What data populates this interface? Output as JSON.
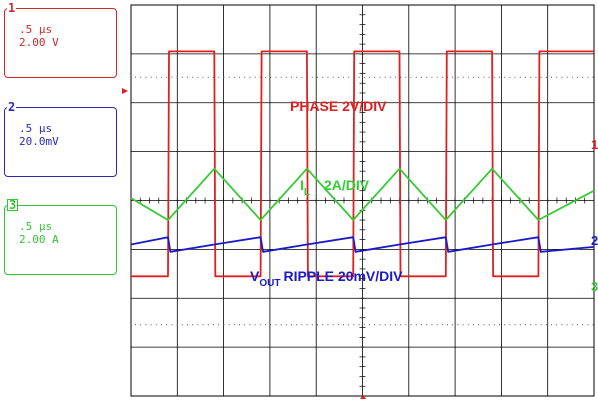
{
  "channels": [
    {
      "number": "1",
      "timebase": ".5 µs",
      "scale": "2.00 V",
      "color": "#e02020"
    },
    {
      "number": "2",
      "timebase": ".5 µs",
      "scale": "20.0mV",
      "color": "#1a1ac8"
    },
    {
      "number": "3",
      "timebase": ".5 µs",
      "scale": "2.00 A",
      "color": "#33cc33"
    }
  ],
  "annotations": {
    "phase": "PHASE 2V/DIV",
    "il_main": "I",
    "il_sub": "L",
    "il_scale": "2A/DIV",
    "vout_main": "V",
    "vout_sub": "OUT",
    "vout_rest": "RIPPLE  20mV/DIV"
  },
  "chart_data": {
    "type": "line",
    "title": "",
    "xlabel": "",
    "ylabel": "",
    "grid": true,
    "divisions": {
      "x": 10,
      "y": 8
    },
    "timebase_per_div": ".5 µs",
    "series": [
      {
        "name": "PHASE 2V/DIV",
        "x": [
          0.0,
          0.8,
          0.82,
          1.8,
          1.82,
          2.8,
          2.82,
          3.8,
          3.82,
          4.8,
          4.82,
          5.8,
          5.82,
          6.8,
          6.82,
          7.8,
          7.82,
          8.8,
          8.82,
          10.0
        ],
        "values": [
          2.45,
          2.45,
          7.05,
          7.05,
          2.45,
          2.45,
          7.05,
          7.05,
          2.45,
          2.45,
          7.05,
          7.05,
          2.45,
          2.45,
          7.05,
          7.05,
          2.45,
          2.45,
          7.05,
          7.05
        ]
      },
      {
        "name": "IL 2A/DIV",
        "x": [
          0.0,
          0.8,
          1.8,
          2.8,
          3.8,
          4.8,
          5.8,
          6.8,
          7.8,
          8.8,
          10.0
        ],
        "values": [
          4.05,
          3.6,
          4.65,
          3.6,
          4.65,
          3.6,
          4.65,
          3.6,
          4.65,
          3.6,
          4.2
        ]
      },
      {
        "name": "VOUT RIPPLE 20mV/DIV",
        "x": [
          0.0,
          0.8,
          0.85,
          1.8,
          2.8,
          2.85,
          3.8,
          4.8,
          4.85,
          5.8,
          6.8,
          6.85,
          7.8,
          8.8,
          8.85,
          10.0
        ],
        "values": [
          3.1,
          3.25,
          2.95,
          3.1,
          3.25,
          2.95,
          3.1,
          3.25,
          2.95,
          3.1,
          3.25,
          2.95,
          3.1,
          3.25,
          2.95,
          3.05
        ]
      }
    ]
  }
}
